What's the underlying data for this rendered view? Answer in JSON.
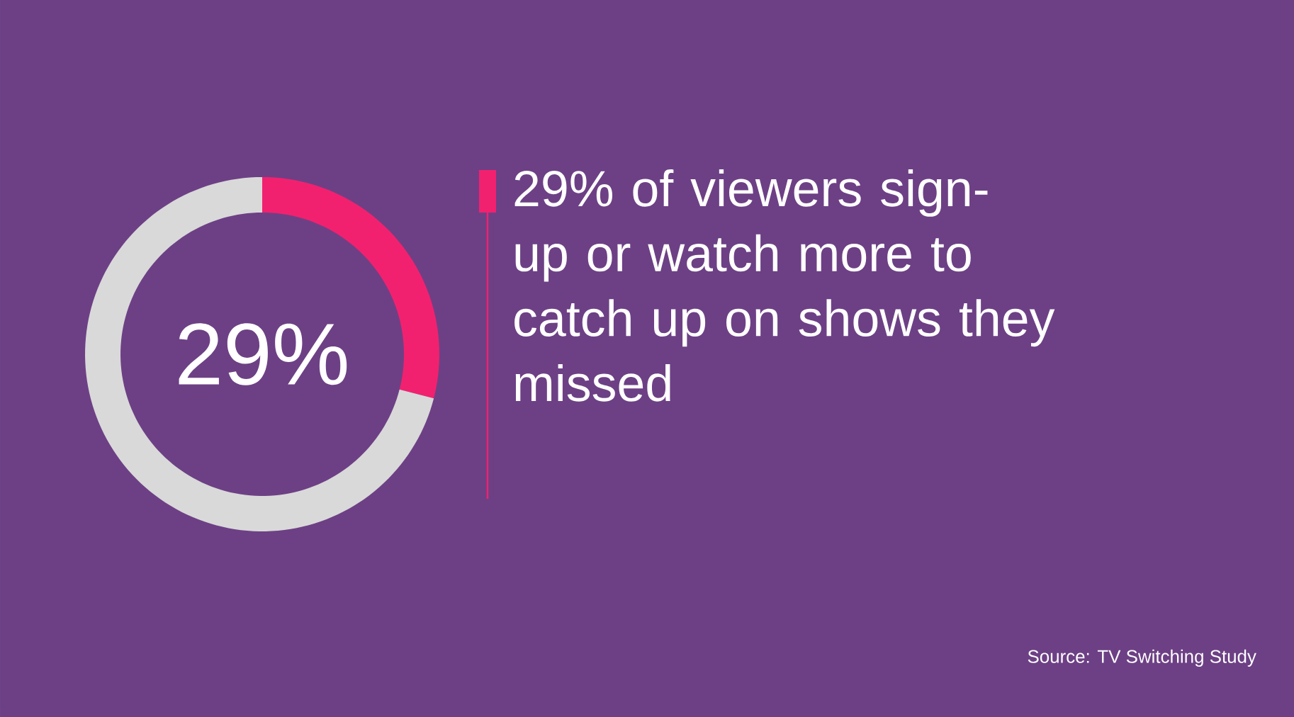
{
  "chart_data": {
    "type": "donut",
    "title": "29% of viewers sign-up or watch more to catch up on shows they missed",
    "categories": [
      null,
      null
    ],
    "values": [
      29,
      71
    ],
    "colors": [
      "#f2216f",
      "#d9d9d9"
    ],
    "value_labels": [
      "29%",
      null
    ],
    "annotations": [
      "Source: TV Switching Study"
    ]
  }
}
